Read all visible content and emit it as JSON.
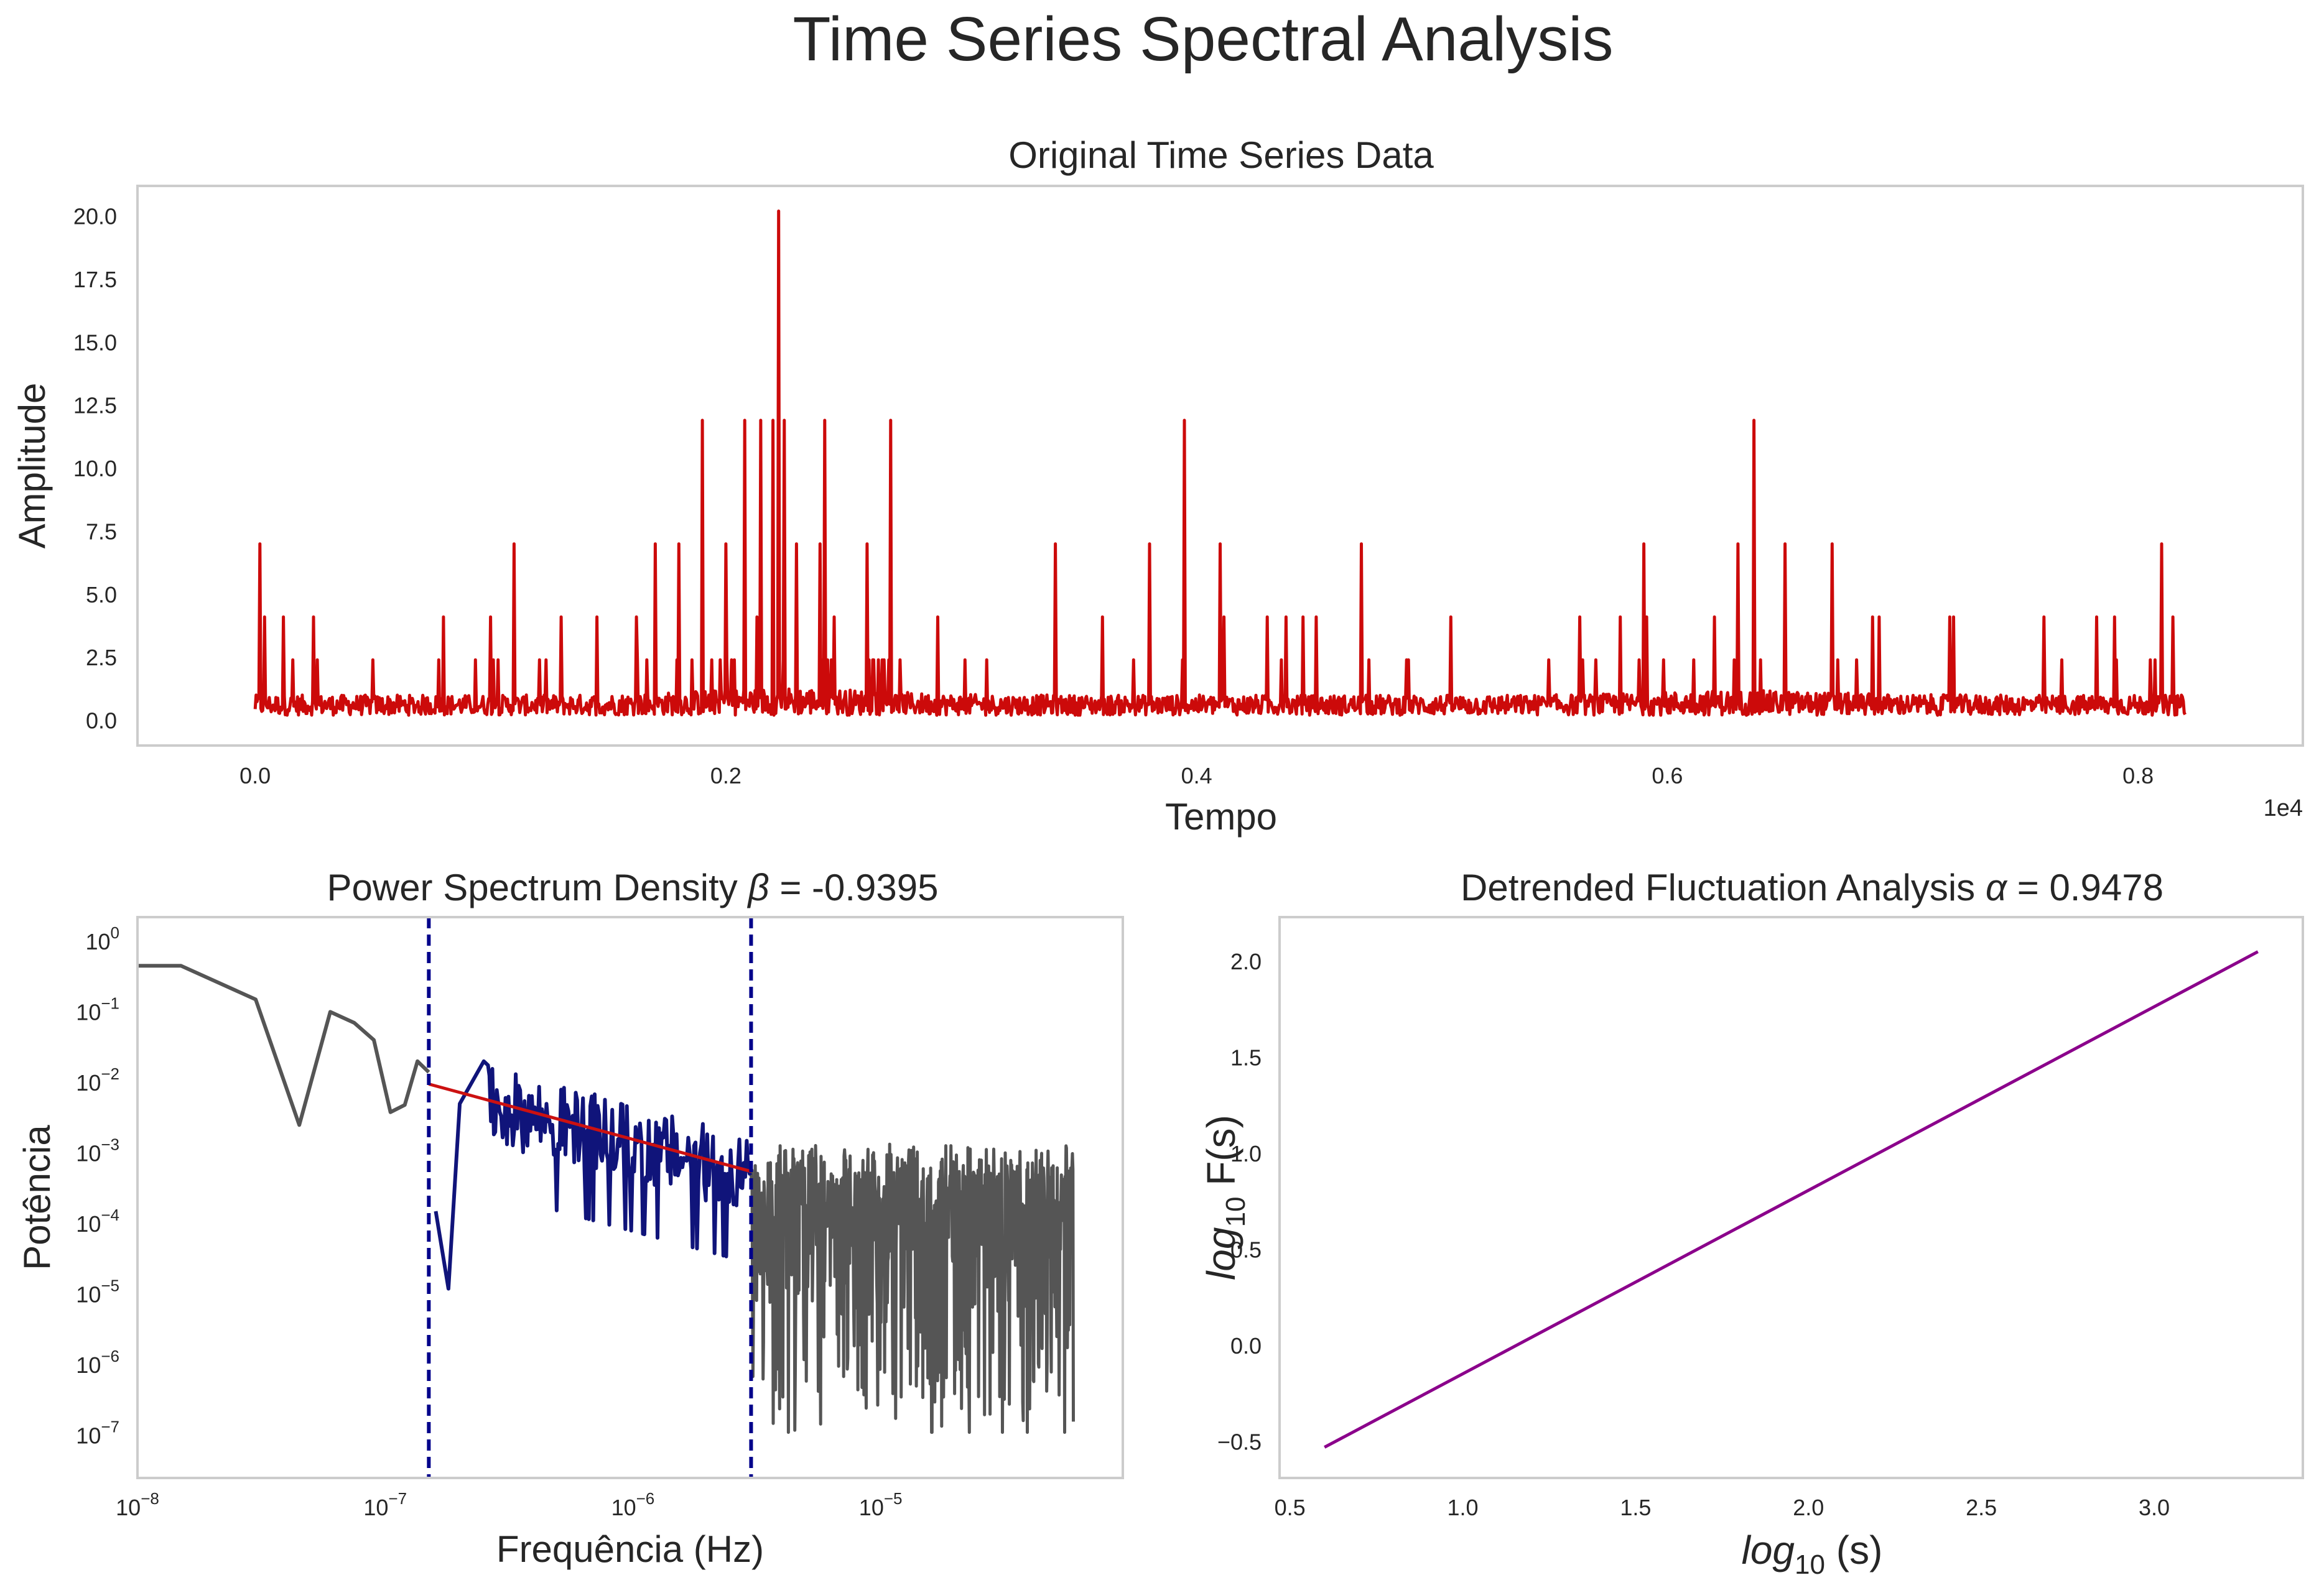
{
  "figure": {
    "suptitle": "Time Series Spectral Analysis"
  },
  "colors": {
    "timeseries": "#cc0a0a",
    "psd_outside": "#555555",
    "psd_fit_range": "#10147a",
    "psd_fit_line": "#cc1111",
    "psd_bounds": "#00008b",
    "dfa_line": "#8b008b",
    "frame": "#cccccc",
    "text": "#262626"
  },
  "chart_data": [
    {
      "type": "line",
      "title": "Original Time Series Data",
      "xlabel": "Tempo",
      "ylabel": "Amplitude",
      "x_offset_label": "1e4",
      "xlim": [
        -500,
        8700
      ],
      "ylim": [
        -1.0,
        21.2
      ],
      "xticks": [
        0,
        2000,
        4000,
        6000,
        8000
      ],
      "xtick_labels": [
        "0.0",
        "0.2",
        "0.4",
        "0.6",
        "0.8"
      ],
      "yticks": [
        0,
        2.5,
        5,
        7.5,
        10,
        12.5,
        15,
        17.5,
        20
      ],
      "ytick_labels": [
        "0.0",
        "2.5",
        "5.0",
        "7.5",
        "10.0",
        "12.5",
        "15.0",
        "17.5",
        "20.0"
      ],
      "grid": false,
      "series": [
        {
          "x_start": 0,
          "x_end": 8200,
          "n_points": 8201,
          "baseline_range": [
            0.2,
            1.2
          ],
          "spikes": [
            {
              "x": 20,
              "y": 7.0
            },
            {
              "x": 40,
              "y": 4.1
            },
            {
              "x": 120,
              "y": 4.1
            },
            {
              "x": 250,
              "y": 4.1
            },
            {
              "x": 500,
              "y": 2.4
            },
            {
              "x": 800,
              "y": 4.1
            },
            {
              "x": 1000,
              "y": 4.1
            },
            {
              "x": 1100,
              "y": 7.0
            },
            {
              "x": 1300,
              "y": 4.1
            },
            {
              "x": 1700,
              "y": 7.0
            },
            {
              "x": 1800,
              "y": 7.0
            },
            {
              "x": 1900,
              "y": 11.9
            },
            {
              "x": 2000,
              "y": 7.0
            },
            {
              "x": 2080,
              "y": 11.9
            },
            {
              "x": 2150,
              "y": 11.9
            },
            {
              "x": 2200,
              "y": 11.9
            },
            {
              "x": 2225,
              "y": 20.2
            },
            {
              "x": 2250,
              "y": 11.9
            },
            {
              "x": 2300,
              "y": 7.0
            },
            {
              "x": 2400,
              "y": 7.0
            },
            {
              "x": 2420,
              "y": 11.9
            },
            {
              "x": 2600,
              "y": 7.0
            },
            {
              "x": 2700,
              "y": 11.9
            },
            {
              "x": 2900,
              "y": 4.1
            },
            {
              "x": 3400,
              "y": 7.0
            },
            {
              "x": 3600,
              "y": 4.1
            },
            {
              "x": 3800,
              "y": 7.0
            },
            {
              "x": 3950,
              "y": 11.9
            },
            {
              "x": 4100,
              "y": 7.0
            },
            {
              "x": 4300,
              "y": 4.1
            },
            {
              "x": 4700,
              "y": 7.0
            },
            {
              "x": 4900,
              "y": 2.4
            },
            {
              "x": 5800,
              "y": 4.1
            },
            {
              "x": 5900,
              "y": 7.0
            },
            {
              "x": 6200,
              "y": 4.1
            },
            {
              "x": 6300,
              "y": 7.0
            },
            {
              "x": 6370,
              "y": 11.9
            },
            {
              "x": 6500,
              "y": 7.0
            },
            {
              "x": 6700,
              "y": 7.0
            },
            {
              "x": 6900,
              "y": 4.1
            },
            {
              "x": 7200,
              "y": 4.1
            },
            {
              "x": 7600,
              "y": 4.1
            },
            {
              "x": 7900,
              "y": 4.1
            },
            {
              "x": 8100,
              "y": 7.0
            },
            {
              "x": 8150,
              "y": 4.1
            }
          ]
        }
      ]
    },
    {
      "type": "line",
      "title_prefix": "Power Spectrum Density ",
      "title_symbol": "β",
      "title_suffix": " = -0.9395",
      "xlabel": "Frequência (Hz)",
      "ylabel": "Potência",
      "xscale": "log",
      "yscale": "log",
      "xlim": [
        1e-08,
        9.5e-05
      ],
      "ylim": [
        2.5e-08,
        2.2
      ],
      "xtick_exponents": [
        -8,
        -7,
        -6,
        -5
      ],
      "ytick_exponents": [
        -7,
        -6,
        -5,
        -4,
        -3,
        -2,
        -1,
        0
      ],
      "grid": false,
      "fit_range": [
        1.5e-07,
        3e-06
      ],
      "beta": -0.9395,
      "series": [
        {
          "name": "low-frequency bins",
          "points": [
            [
              1e-08,
              0.45
            ],
            [
              1.5e-08,
              0.45
            ],
            [
              3e-08,
              0.15
            ],
            [
              4.5e-08,
              0.0025
            ],
            [
              6e-08,
              0.1
            ],
            [
              7.5e-08,
              0.07
            ],
            [
              9e-08,
              0.04
            ],
            [
              1.05e-07,
              0.0038
            ],
            [
              1.2e-07,
              0.0048
            ],
            [
              1.35e-07,
              0.02
            ],
            [
              1.5e-07,
              0.014
            ]
          ]
        },
        {
          "name": "fit range",
          "x_range": [
            1.5e-07,
            3e-06
          ],
          "level_at_start": 0.0095,
          "noise_decades": [
            -1.3,
            0.6
          ],
          "notable_points": [
            [
              1.6e-07,
              0.00015
            ],
            [
              1.8e-07,
              1.2e-05
            ],
            [
              2e-07,
              0.005
            ],
            [
              2.5e-07,
              0.02
            ]
          ]
        },
        {
          "name": "high-frequency bins",
          "x_range": [
            3e-06,
            6e-05
          ],
          "level": 0.00035,
          "noise_decades": [
            -3.5,
            1.1
          ]
        }
      ],
      "fit_line": {
        "x": [
          1.5e-07,
          3e-06
        ],
        "y": [
          0.0095,
          0.00055
        ]
      }
    },
    {
      "type": "line",
      "title_prefix": "Detrended Fluctuation Analysis ",
      "title_symbol": "α",
      "title_suffix": " = 0.9478",
      "xlabel_main": "log",
      "xlabel_sub": "10",
      "xlabel_tail": " (s)",
      "ylabel_main": "log",
      "ylabel_sub": "10",
      "ylabel_tail": " F(s)",
      "xlim": [
        0.47,
        3.43
      ],
      "ylim": [
        -0.69,
        2.23
      ],
      "xticks": [
        0.5,
        1.0,
        1.5,
        2.0,
        2.5,
        3.0
      ],
      "xtick_labels": [
        "0.5",
        "1.0",
        "1.5",
        "2.0",
        "2.5",
        "3.0"
      ],
      "yticks": [
        -0.5,
        0.0,
        0.5,
        1.0,
        1.5,
        2.0
      ],
      "ytick_labels": [
        "−0.5",
        "0.0",
        "0.5",
        "1.0",
        "1.5",
        "2.0"
      ],
      "grid": false,
      "alpha": 0.9478,
      "series": [
        {
          "x": [
            0.6,
            3.3
          ],
          "y": [
            -0.53,
            2.05
          ]
        }
      ]
    }
  ]
}
